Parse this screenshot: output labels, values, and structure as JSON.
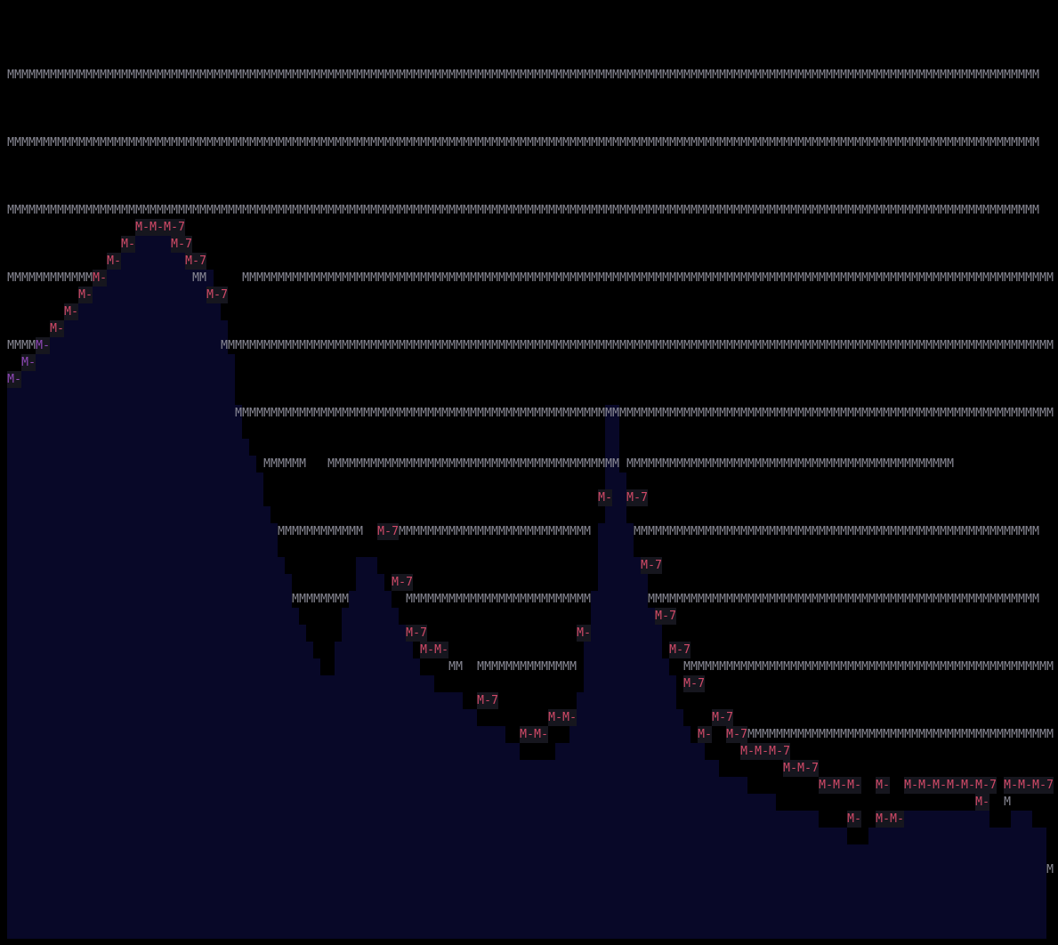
{
  "terminal": {
    "columns": 148,
    "rows": 56,
    "colors": {
      "background": "#000000",
      "fill": "#080828",
      "grid_text": "#8a8a96",
      "curve_text": "#d24a68",
      "curve_text_alt": "#9048b8",
      "curve_bg": "#16161e"
    },
    "grid_char": "M",
    "lines": [
      "",
      "",
      "",
      "",
      " MMMMMMMMMMMMMMMMMMMMMMMMMMMMMMMMMMMMMMMMMMMMMMMMMMMMMMMMMMMMMMMMMMMMMMMMMMMMMMMMMMMMMMMMMMMMMMMMMMMMMMMMMMMMMMMMMMMMMMMMMMMMMMMMMMMMMMMMMMMMMMMMM",
      "",
      "",
      "",
      " MMMMMMMMMMMMMMMMMMMMMMMMMMMMMMMMMMMMMMMMMMMMMMMMMMMMMMMMMMMMMMMMMMMMMMMMMMMMMMMMMMMMMMMMMMMMMMMMMMMMMMMMMMMMMMMMMMMMMMMMMMMMMMMMMMMMMMMMMMMMMMMMM",
      "",
      "",
      "",
      " MMMMMMMMMMMMMMMMMMMMMMMMMMMMMMMMMMMMMMMMMMMMMMMMMMMMMMMMMMMMMMMMMMMMMMMMMMMMMMMMMMMMMMMMMMMMMMMMMMMMMMMMMMMMMMMMMMMMMMMMMMMMMMMMMMMMMMMMMMMMMMMMM",
      "                   M-M-M-7",
      "                 M-     M-7",
      "               M-         M-7",
      " MMMMMMMMMMMMM-            MM     MMMMMMMMMMMMMMMMMMMMMMMMMMMMMMMMMMMMMMMMMMMMMMMMMMMMMMMMMMMMMMMMMMMMMMMMMMMMMMMMMMMMMMMMMMMMMMMMMMMMMMMMMMMMMMMMMMM",
      "           M-                M-7",
      "         M-",
      "       M-",
      " MMMMM-                        MMMMMMMMMMMMMMMMMMMMMMMMMMMMMMMMMMMMMMMMMMMMMMMMMMMMMMMMMMMMMMMMMMMMMMMMMMMMMMMMMMMMMMMMMMMMMMMMMMMMMMMMMMMMMMMMMMMMM",
      "   M-",
      " M-",
      "",
      "                                 MMMMMMMMMMMMMMMMMMMMMMMMMMMMMMMMMMMMMMMMMMMMMMMMMMMMMMMMMMMMMMMMMMMMMMMMMMMMMMMMMMMMMMMMMMMMMMMMMMMMMMMMMMMMMMMMMMMM",
      "",
      "",
      "                                     MMMMMM   MMMMMMMMMMMMMMMMMMMMMMMMMMMMMMMMMMMMMMMMM MMMMMMMMMMMMMMMMMMMMMMMMMMMMMMMMMMMMMMMMMMMMMM",
      "",
      "                                                                                    M-  M-7",
      "",
      "                                       MMMMMMMMMMMM  M-7MMMMMMMMMMMMMMMMMMMMMMMMMMM      MMMMMMMMMMMMMMMMMMMMMMMMMMMMMMMMMMMMMMMMMMMMMMMMMMMMMMMMM",
      "",
      "                                                                                          M-7",
      "                                                       M-7",
      "                                         MMMMMMMM        MMMMMMMMMMMMMMMMMMMMMMMMMM        MMMMMMMMMMMMMMMMMMMMMMMMMMMMMMMMMMMMMMMMMMMMMMMMMMMMMMM",
      "                                                                                            M-7",
      "                                                         M-7                     M-",
      "                                                           M-M-                               M-7",
      "                                                               MM  MMMMMMMMMMMMMM               MMMMMMMMMMMMMMMMMMMMMMMMMMMMMMMMMMMMMMMMMMMMMMMMMMMMM",
      "                                                                                                M-7",
      "                                                                   M-7",
      "                                                                             M-M-                   M-7",
      "                                                                         M-M-                     M-  M-7MMMMMMMMMMMMMMMMMMMMMMMMMMMMMMMMMMMMMMMMMMMMMMMMMMM",
      "                                                                                                        M-M-M-7",
      "                                                                                                              M-M-7",
      "                                                                                                                   M-M-M-  M-  M-M-M-M-M-M-7 M-M-M-7",
      "                                                                                                                                         M-  M",
      "                                                                                                                       M-  M-M-",
      "",
      "",
      "                                                                                                                                                   M"
    ]
  }
}
